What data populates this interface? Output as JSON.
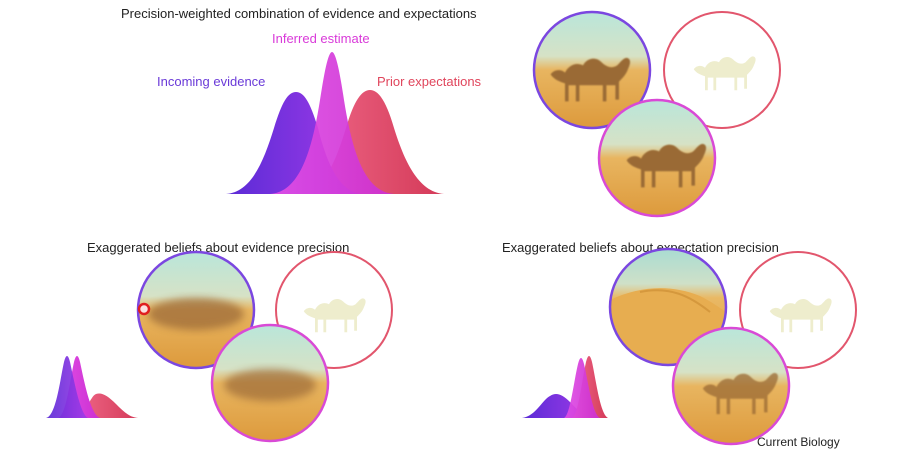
{
  "top": {
    "title": "Precision-weighted combination of evidence and expectations",
    "labels": {
      "evidence": "Incoming evidence",
      "estimate": "Inferred estimate",
      "prior": "Prior expectations"
    }
  },
  "bottom_left": {
    "title": "Exaggerated beliefs about evidence precision"
  },
  "bottom_right": {
    "title": "Exaggerated beliefs about expectation precision"
  },
  "footer": {
    "source": "Current Biology"
  },
  "colors": {
    "evidence": "#7c3aed",
    "estimate": "#e040e0",
    "prior": "#e8506e",
    "sand": "#e6a54a",
    "sky": "#a8dccf"
  },
  "icons": {
    "camel": "camel-silhouette",
    "desert": "desert-dune",
    "marker": "red-circle-marker"
  }
}
